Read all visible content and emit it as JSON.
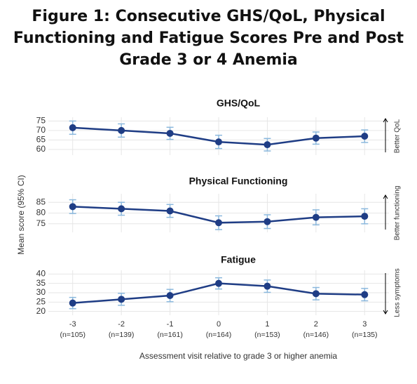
{
  "title": "Figure 1: Consecutive GHS/QoL, Physical Functioning and Fatigue Scores Pre and Post Grade 3 or 4 Anemia",
  "y_label": "Mean score (95% CI)",
  "x_label": "Assessment visit relative to grade 3 or higher anemia",
  "x": [
    -3,
    -2,
    -1,
    0,
    1,
    2,
    3
  ],
  "xticks": [
    -3,
    -2,
    -1,
    0,
    1,
    2,
    3
  ],
  "xlim": [
    -3.5,
    3.5
  ],
  "n_labels": [
    "(n=105)",
    "(n=139)",
    "(n=161)",
    "(n=164)",
    "(n=153)",
    "(n=146)",
    "(n=135)"
  ],
  "line_color": "#1f3d85",
  "error_color": "#8bb8dd",
  "grid": true,
  "chart_data": [
    {
      "type": "line",
      "title": "GHS/QoL",
      "annotation": "Better QoL",
      "arrow": "up",
      "values": [
        71.5,
        70,
        68.5,
        64,
        62.5,
        66,
        67
      ],
      "errors": [
        3.5,
        3.5,
        3.2,
        3.5,
        3.3,
        3.2,
        3.3
      ],
      "ylim": [
        57,
        77
      ],
      "yticks": [
        60,
        65,
        70,
        75
      ]
    },
    {
      "type": "line",
      "title": "Physical Functioning",
      "annotation": "Better functioning",
      "arrow": "up",
      "values": [
        83,
        82,
        81,
        75.5,
        76,
        78,
        78.5
      ],
      "errors": [
        3.2,
        3,
        3,
        3.2,
        3.2,
        3.5,
        3.5
      ],
      "ylim": [
        71,
        89
      ],
      "yticks": [
        75,
        80,
        85
      ]
    },
    {
      "type": "line",
      "title": "Fatigue",
      "annotation": "Less symptoms",
      "arrow": "down",
      "values": [
        24.5,
        26.5,
        28.5,
        35,
        33.5,
        29.5,
        29
      ],
      "errors": [
        3,
        3.2,
        3.3,
        3,
        3.3,
        3.3,
        3.3
      ],
      "ylim": [
        18,
        42
      ],
      "yticks": [
        20,
        25,
        30,
        35,
        40
      ]
    }
  ]
}
